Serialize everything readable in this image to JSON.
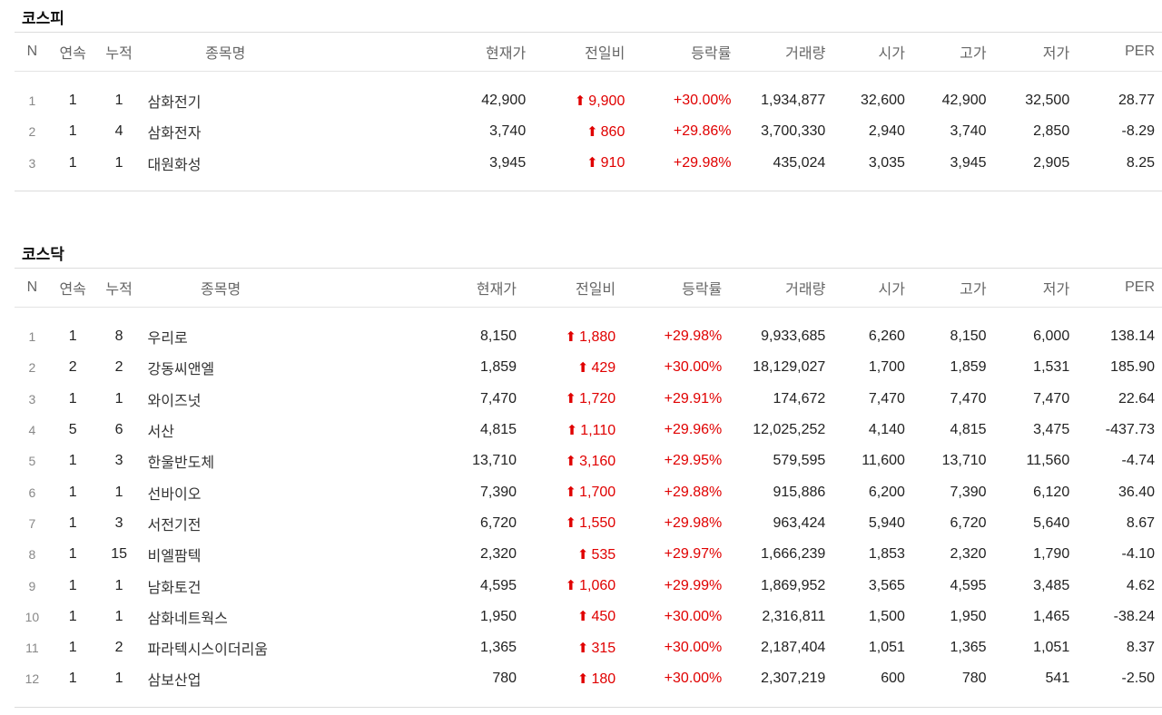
{
  "headers": [
    "N",
    "연속",
    "누적",
    "종목명",
    "현재가",
    "전일비",
    "등락률",
    "거래량",
    "시가",
    "고가",
    "저가",
    "PER"
  ],
  "colors": {
    "up": "#e00000"
  },
  "icons": {
    "change": "red-up-arrow-icon"
  },
  "kospi": {
    "title": "코스피",
    "rows": [
      [
        "1",
        "1",
        "1",
        "삼화전기",
        "42,900",
        "9,900",
        "+30.00%",
        "1,934,877",
        "32,600",
        "42,900",
        "32,500",
        "28.77"
      ],
      [
        "2",
        "1",
        "4",
        "삼화전자",
        "3,740",
        "860",
        "+29.86%",
        "3,700,330",
        "2,940",
        "3,740",
        "2,850",
        "-8.29"
      ],
      [
        "3",
        "1",
        "1",
        "대원화성",
        "3,945",
        "910",
        "+29.98%",
        "435,024",
        "3,035",
        "3,945",
        "2,905",
        "8.25"
      ]
    ]
  },
  "kosdaq": {
    "title": "코스닥",
    "rows": [
      [
        "1",
        "1",
        "8",
        "우리로",
        "8,150",
        "1,880",
        "+29.98%",
        "9,933,685",
        "6,260",
        "8,150",
        "6,000",
        "138.14"
      ],
      [
        "2",
        "2",
        "2",
        "강동씨앤엘",
        "1,859",
        "429",
        "+30.00%",
        "18,129,027",
        "1,700",
        "1,859",
        "1,531",
        "185.90"
      ],
      [
        "3",
        "1",
        "1",
        "와이즈넛",
        "7,470",
        "1,720",
        "+29.91%",
        "174,672",
        "7,470",
        "7,470",
        "7,470",
        "22.64"
      ],
      [
        "4",
        "5",
        "6",
        "서산",
        "4,815",
        "1,110",
        "+29.96%",
        "12,025,252",
        "4,140",
        "4,815",
        "3,475",
        "-437.73"
      ],
      [
        "5",
        "1",
        "3",
        "한울반도체",
        "13,710",
        "3,160",
        "+29.95%",
        "579,595",
        "11,600",
        "13,710",
        "11,560",
        "-4.74"
      ],
      [
        "6",
        "1",
        "1",
        "선바이오",
        "7,390",
        "1,700",
        "+29.88%",
        "915,886",
        "6,200",
        "7,390",
        "6,120",
        "36.40"
      ],
      [
        "7",
        "1",
        "3",
        "서전기전",
        "6,720",
        "1,550",
        "+29.98%",
        "963,424",
        "5,940",
        "6,720",
        "5,640",
        "8.67"
      ],
      [
        "8",
        "1",
        "15",
        "비엘팜텍",
        "2,320",
        "535",
        "+29.97%",
        "1,666,239",
        "1,853",
        "2,320",
        "1,790",
        "-4.10"
      ],
      [
        "9",
        "1",
        "1",
        "남화토건",
        "4,595",
        "1,060",
        "+29.99%",
        "1,869,952",
        "3,565",
        "4,595",
        "3,485",
        "4.62"
      ],
      [
        "10",
        "1",
        "1",
        "삼화네트웍스",
        "1,950",
        "450",
        "+30.00%",
        "2,316,811",
        "1,500",
        "1,950",
        "1,465",
        "-38.24"
      ],
      [
        "11",
        "1",
        "2",
        "파라텍시스이더리움",
        "1,365",
        "315",
        "+30.00%",
        "2,187,404",
        "1,051",
        "1,365",
        "1,051",
        "8.37"
      ],
      [
        "12",
        "1",
        "1",
        "삼보산업",
        "780",
        "180",
        "+30.00%",
        "2,307,219",
        "600",
        "780",
        "541",
        "-2.50"
      ]
    ]
  }
}
